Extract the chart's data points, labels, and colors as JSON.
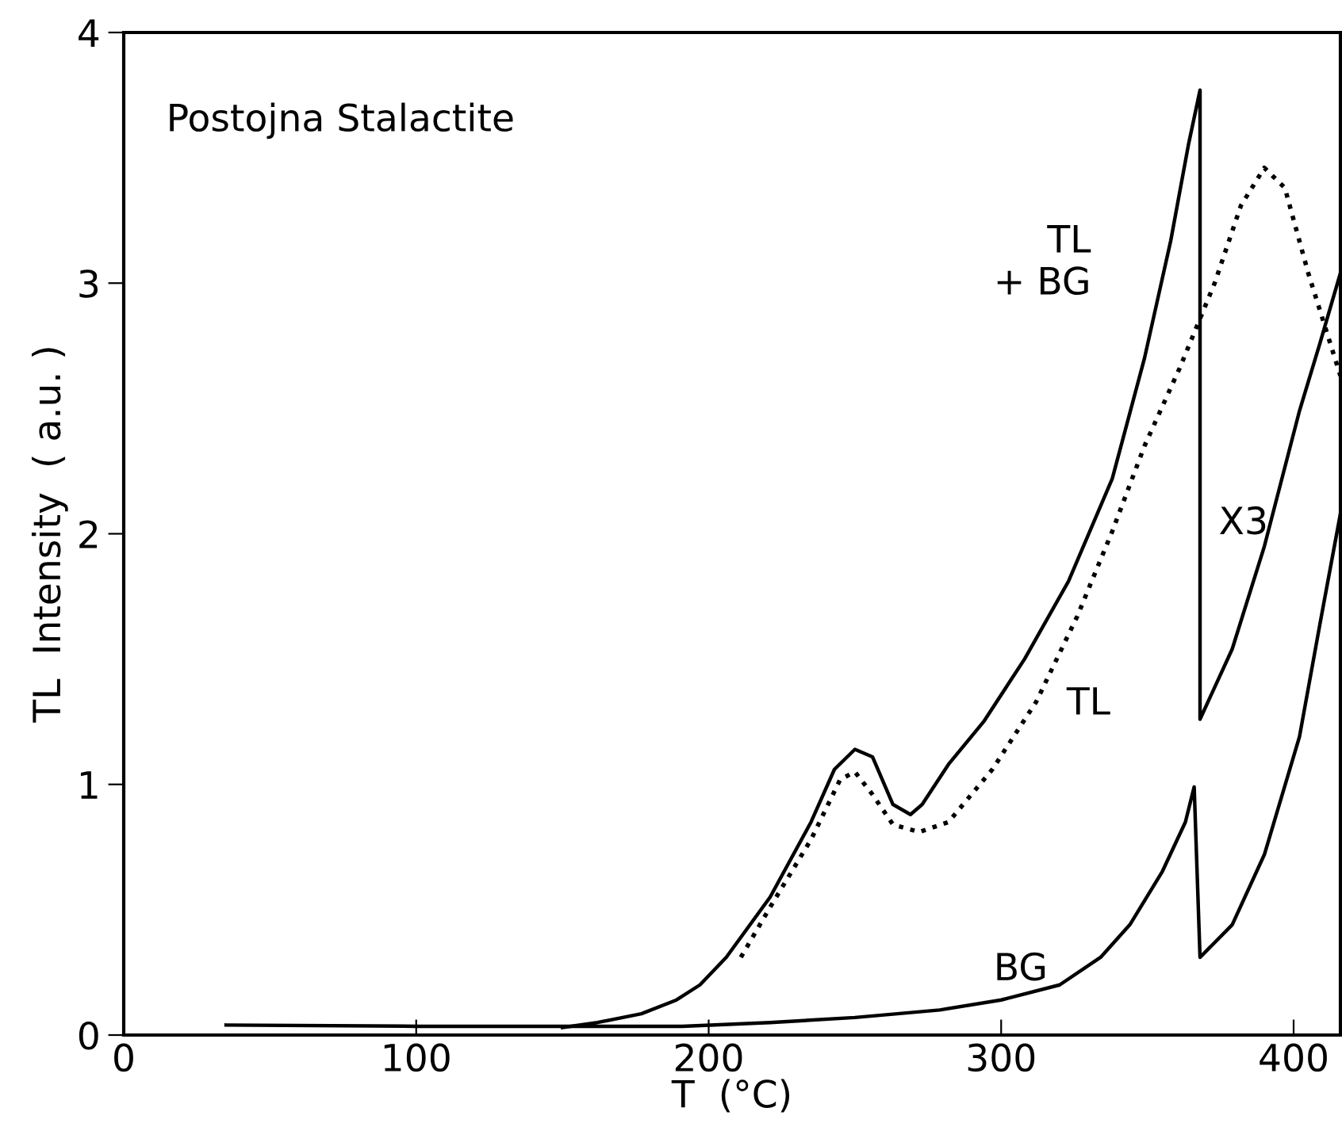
{
  "chart_data": {
    "type": "line",
    "title": "Postojna Stalactite",
    "xlabel": "T  (°C)",
    "ylabel": "TL  Intensity  ( a.u. )",
    "xlim": [
      0,
      416
    ],
    "ylim": [
      0,
      4
    ],
    "xticks": [
      0,
      100,
      200,
      300,
      400
    ],
    "yticks": [
      0,
      1,
      2,
      3,
      4
    ],
    "grid": false,
    "legend": false,
    "marker": "none",
    "series": [
      {
        "name": "TL\n+ BG",
        "color": "#000000",
        "line_style": "solid",
        "x": [
          150,
          162,
          177,
          189,
          197,
          206,
          221,
          235,
          243,
          250,
          256,
          263,
          269,
          273,
          282,
          294,
          308,
          323,
          338,
          349,
          358,
          364,
          368,
          368,
          379,
          390,
          402,
          409,
          416
        ],
        "values": [
          0.03,
          0.05,
          0.085,
          0.14,
          0.2,
          0.31,
          0.55,
          0.85,
          1.06,
          1.14,
          1.11,
          0.92,
          0.88,
          0.92,
          1.08,
          1.25,
          1.5,
          1.81,
          2.22,
          2.7,
          3.17,
          3.55,
          3.77,
          1.26,
          1.54,
          1.95,
          2.49,
          2.76,
          3.04
        ]
      },
      {
        "name": "TL",
        "color": "#000000",
        "line_style": "dotted",
        "x": [
          211,
          221,
          235,
          245,
          250,
          256,
          263,
          272,
          282,
          297,
          312,
          326,
          338,
          349,
          361,
          373,
          382,
          390,
          397,
          405,
          416
        ],
        "values": [
          0.31,
          0.51,
          0.78,
          1.02,
          1.05,
          0.96,
          0.84,
          0.81,
          0.85,
          1.06,
          1.33,
          1.67,
          2.01,
          2.35,
          2.66,
          3.0,
          3.31,
          3.46,
          3.38,
          3.04,
          2.63
        ]
      },
      {
        "name": "BG",
        "color": "#000000",
        "line_style": "solid",
        "x": [
          35,
          100,
          150,
          191,
          221,
          250,
          279,
          300,
          320,
          334,
          344,
          355,
          363,
          366,
          368,
          379,
          390,
          402,
          409,
          416
        ],
        "values": [
          0.04,
          0.035,
          0.035,
          0.035,
          0.05,
          0.07,
          0.1,
          0.14,
          0.2,
          0.31,
          0.44,
          0.65,
          0.85,
          0.99,
          0.31,
          0.44,
          0.72,
          1.19,
          1.64,
          2.08
        ]
      }
    ],
    "annotations": [
      "X3"
    ]
  }
}
